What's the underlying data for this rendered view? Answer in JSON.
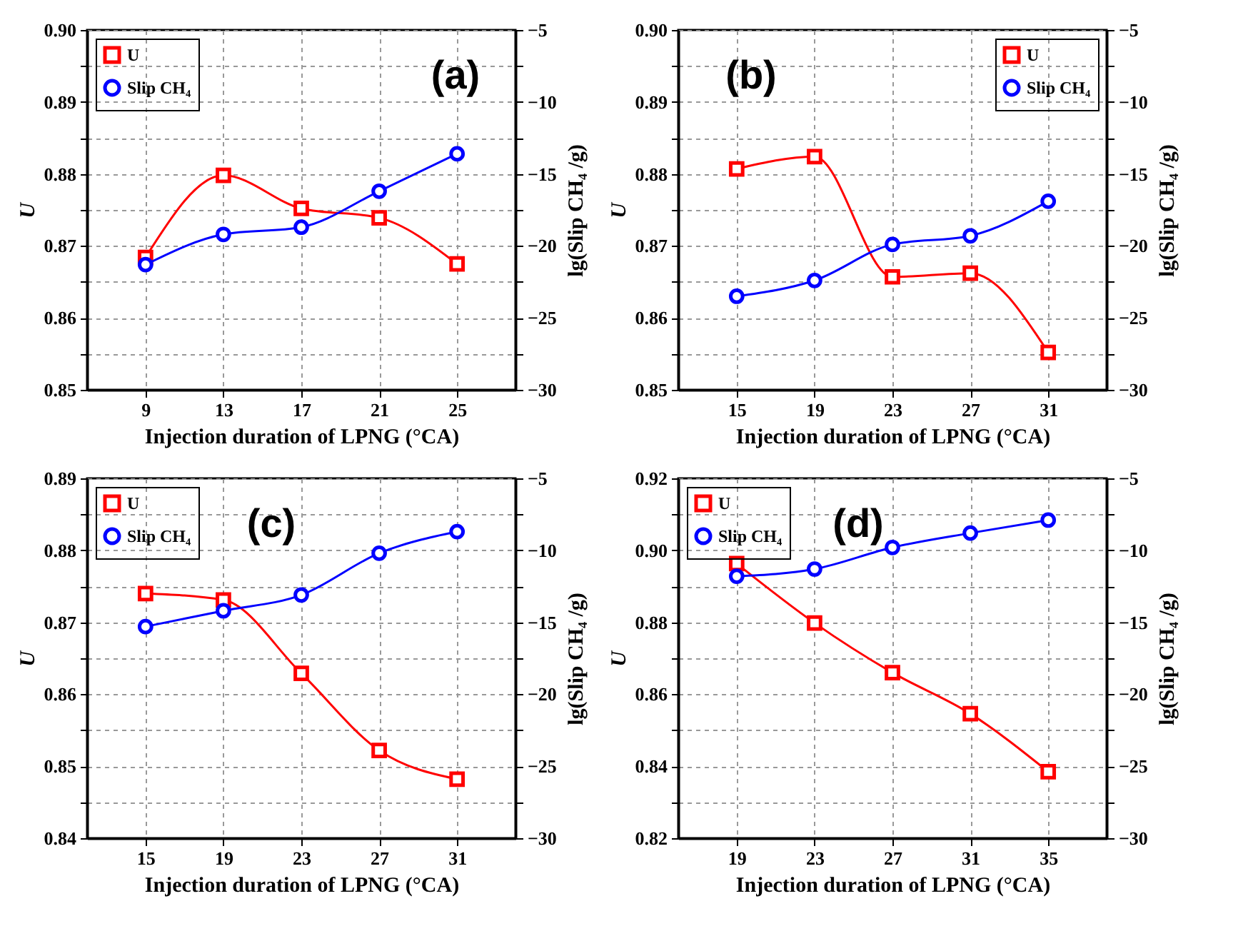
{
  "chart_data": [
    {
      "type": "line",
      "title": "(a)",
      "xlabel": "Injection duration of LPNG (°CA)",
      "ylabel": "U",
      "y2label": "lg(Slip CH₄ /g)",
      "x": [
        9,
        13,
        17,
        21,
        25
      ],
      "xlim": [
        6,
        28
      ],
      "xticks": [
        9,
        13,
        17,
        21,
        25
      ],
      "ylim": [
        0.85,
        0.9
      ],
      "yticks": [
        {
          "value": 0.85,
          "label": "0.85"
        },
        {
          "value": 0.855,
          "label": null
        },
        {
          "value": 0.86,
          "label": "0.86"
        },
        {
          "value": 0.865,
          "label": null
        },
        {
          "value": 0.87,
          "label": "0.87"
        },
        {
          "value": 0.875,
          "label": null
        },
        {
          "value": 0.88,
          "label": "0.88"
        },
        {
          "value": 0.885,
          "label": null
        },
        {
          "value": 0.89,
          "label": "0.89"
        },
        {
          "value": 0.895,
          "label": null
        },
        {
          "value": 0.9,
          "label": "0.90"
        }
      ],
      "y2lim": [
        -30,
        -5
      ],
      "y2ticks": [
        -30,
        {
          "value": -27.5,
          "label": null
        },
        -25,
        {
          "value": -22.5,
          "label": null
        },
        -20,
        {
          "value": -17.5,
          "label": null
        },
        -15,
        {
          "value": -12.5,
          "label": null
        },
        -10,
        {
          "value": -7.5,
          "label": null
        },
        -5
      ],
      "grid": true,
      "legend": "top left",
      "series": [
        {
          "name": "U",
          "color": "#ff0000",
          "marker": "square",
          "values": [
            0.8684,
            0.8798,
            0.8752,
            0.8739,
            0.8675
          ]
        },
        {
          "name": "Slip CH₄",
          "color": "#0000ff",
          "marker": "circle",
          "axis": "y2",
          "values": [
            -21.3,
            -19.2,
            -18.7,
            -16.2,
            -13.6
          ]
        }
      ]
    },
    {
      "type": "line",
      "title": "(b)",
      "xlabel": "Injection duration of LPNG (°CA)",
      "ylabel": "U",
      "y2label": "lg(Slip CH₄ /g)",
      "x": [
        15,
        19,
        23,
        27,
        31
      ],
      "xlim": [
        12,
        34
      ],
      "xticks": [
        15,
        19,
        23,
        27,
        31
      ],
      "ylim": [
        0.85,
        0.9
      ],
      "yticks": [
        {
          "value": 0.85,
          "label": "0.85"
        },
        {
          "value": 0.855,
          "label": null
        },
        {
          "value": 0.86,
          "label": "0.86"
        },
        {
          "value": 0.865,
          "label": null
        },
        {
          "value": 0.87,
          "label": "0.87"
        },
        {
          "value": 0.875,
          "label": null
        },
        {
          "value": 0.88,
          "label": "0.88"
        },
        {
          "value": 0.885,
          "label": null
        },
        {
          "value": 0.89,
          "label": "0.89"
        },
        {
          "value": 0.895,
          "label": null
        },
        {
          "value": 0.9,
          "label": "0.90"
        }
      ],
      "y2lim": [
        -30,
        -5
      ],
      "y2ticks": [
        -30,
        {
          "value": -27.5,
          "label": null
        },
        -25,
        {
          "value": -22.5,
          "label": null
        },
        -20,
        {
          "value": -17.5,
          "label": null
        },
        -15,
        {
          "value": -12.5,
          "label": null
        },
        -10,
        {
          "value": -7.5,
          "label": null
        },
        -5
      ],
      "grid": true,
      "legend": "top right",
      "series": [
        {
          "name": "U",
          "color": "#ff0000",
          "marker": "square",
          "values": [
            0.8807,
            0.8824,
            0.8657,
            0.8662,
            0.8552
          ]
        },
        {
          "name": "Slip CH₄",
          "color": "#0000ff",
          "marker": "circle",
          "axis": "y2",
          "values": [
            -23.5,
            -22.4,
            -19.9,
            -19.3,
            -16.9
          ]
        }
      ]
    },
    {
      "type": "line",
      "title": "(c)",
      "xlabel": "Injection duration of LPNG (°CA)",
      "ylabel": "U",
      "y2label": "lg(Slip CH₄ /g)",
      "x": [
        15,
        19,
        23,
        27,
        31
      ],
      "xlim": [
        12,
        34
      ],
      "xticks": [
        15,
        19,
        23,
        27,
        31
      ],
      "ylim": [
        0.84,
        0.89
      ],
      "yticks": [
        {
          "value": 0.84,
          "label": "0.84"
        },
        {
          "value": 0.845,
          "label": null
        },
        {
          "value": 0.85,
          "label": "0.85"
        },
        {
          "value": 0.855,
          "label": null
        },
        {
          "value": 0.86,
          "label": "0.86"
        },
        {
          "value": 0.865,
          "label": null
        },
        {
          "value": 0.87,
          "label": "0.87"
        },
        {
          "value": 0.875,
          "label": null
        },
        {
          "value": 0.88,
          "label": "0.88"
        },
        {
          "value": 0.885,
          "label": null
        },
        {
          "value": 0.89,
          "label": "0.89"
        }
      ],
      "y2lim": [
        -30,
        -5
      ],
      "y2ticks": [
        -30,
        {
          "value": -27.5,
          "label": null
        },
        -25,
        {
          "value": -22.5,
          "label": null
        },
        -20,
        {
          "value": -17.5,
          "label": null
        },
        -15,
        {
          "value": -12.5,
          "label": null
        },
        -10,
        {
          "value": -7.5,
          "label": null
        },
        -5
      ],
      "grid": true,
      "legend": "top left",
      "series": [
        {
          "name": "U",
          "color": "#ff0000",
          "marker": "square",
          "values": [
            0.874,
            0.8731,
            0.8629,
            0.8522,
            0.8482
          ]
        },
        {
          "name": "Slip CH₄",
          "color": "#0000ff",
          "marker": "circle",
          "axis": "y2",
          "values": [
            -15.3,
            -14.2,
            -13.1,
            -10.2,
            -8.7
          ]
        }
      ]
    },
    {
      "type": "line",
      "title": "(d)",
      "xlabel": "Injection duration of LPNG (°CA)",
      "ylabel": "U",
      "y2label": "lg(Slip CH₄ /g)",
      "x": [
        19,
        23,
        27,
        31,
        35
      ],
      "xlim": [
        16,
        38
      ],
      "xticks": [
        19,
        23,
        27,
        31,
        35
      ],
      "ylim": [
        0.82,
        0.92
      ],
      "yticks": [
        {
          "value": 0.82,
          "label": "0.82"
        },
        {
          "value": 0.83,
          "label": null
        },
        {
          "value": 0.84,
          "label": "0.84"
        },
        {
          "value": 0.85,
          "label": null
        },
        {
          "value": 0.86,
          "label": "0.86"
        },
        {
          "value": 0.87,
          "label": null
        },
        {
          "value": 0.88,
          "label": "0.88"
        },
        {
          "value": 0.89,
          "label": null
        },
        {
          "value": 0.9,
          "label": "0.90"
        },
        {
          "value": 0.91,
          "label": null
        },
        {
          "value": 0.92,
          "label": "0.92"
        }
      ],
      "y2lim": [
        -30,
        -5
      ],
      "y2ticks": [
        -30,
        {
          "value": -27.5,
          "label": null
        },
        -25,
        {
          "value": -22.5,
          "label": null
        },
        -20,
        {
          "value": -17.5,
          "label": null
        },
        -15,
        {
          "value": -12.5,
          "label": null
        },
        -10,
        {
          "value": -7.5,
          "label": null
        },
        -5
      ],
      "grid": true,
      "legend": "top left",
      "series": [
        {
          "name": "U",
          "color": "#ff0000",
          "marker": "square",
          "values": [
            0.8963,
            0.8798,
            0.866,
            0.8546,
            0.8385
          ]
        },
        {
          "name": "Slip CH₄",
          "color": "#0000ff",
          "marker": "circle",
          "axis": "y2",
          "values": [
            -11.8,
            -11.3,
            -9.8,
            -8.8,
            -7.9
          ]
        }
      ]
    }
  ]
}
